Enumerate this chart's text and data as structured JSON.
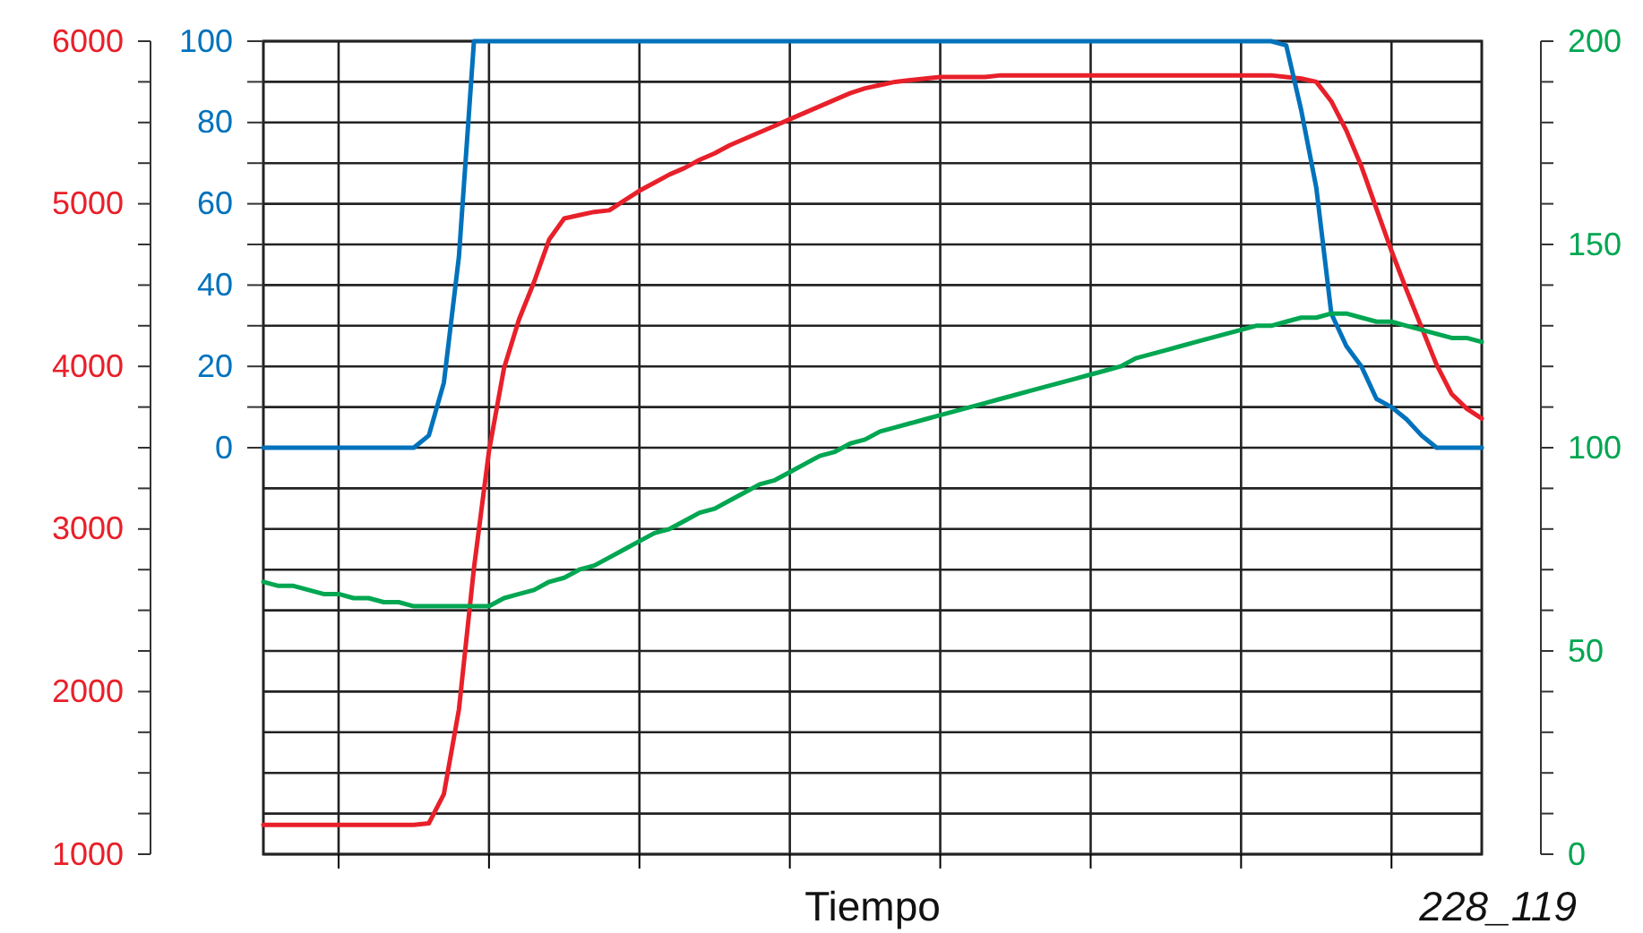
{
  "chart_data": {
    "type": "line",
    "xlabel": "Tiempo",
    "annotations": [
      "228_119"
    ],
    "categories": [
      null,
      null,
      null,
      null,
      null,
      null,
      null,
      null,
      null,
      null,
      null,
      null,
      null,
      null,
      null,
      null,
      null,
      null,
      null,
      null,
      null,
      null,
      null,
      null,
      null,
      null,
      null,
      null,
      null,
      null,
      null,
      null,
      null,
      null,
      null,
      null,
      null,
      null,
      null,
      null,
      null,
      null,
      null,
      null,
      null,
      null,
      null,
      null,
      null,
      null,
      null,
      null,
      null,
      null,
      null,
      null,
      null,
      null,
      null,
      null,
      null,
      null,
      null,
      null,
      null,
      null,
      null,
      null,
      null,
      null,
      null,
      null,
      null,
      null,
      null,
      null,
      null,
      null,
      null,
      null,
      null,
      null
    ],
    "ylim": [
      1000,
      6000
    ],
    "yticks": [
      1000,
      {
        "value": 1250,
        "label": null
      },
      {
        "value": 1500,
        "label": null
      },
      {
        "value": 1750,
        "label": null
      },
      2000,
      {
        "value": 2250,
        "label": null
      },
      {
        "value": 2500,
        "label": null
      },
      {
        "value": 2750,
        "label": null
      },
      3000,
      {
        "value": 3250,
        "label": null
      },
      {
        "value": 3500,
        "label": null
      },
      {
        "value": 3750,
        "label": null
      },
      4000,
      {
        "value": 4250,
        "label": null
      },
      {
        "value": 4500,
        "label": null
      },
      {
        "value": 4750,
        "label": null
      },
      5000,
      {
        "value": 5250,
        "label": null
      },
      {
        "value": 5500,
        "label": null
      },
      {
        "value": 5750,
        "label": null
      },
      6000
    ],
    "y2lim": [
      0,
      200
    ],
    "y2ticks": [
      0,
      {
        "value": 10,
        "label": null
      },
      {
        "value": 20,
        "label": null
      },
      {
        "value": 30,
        "label": null
      },
      {
        "value": 40,
        "label": null
      },
      50,
      {
        "value": 60,
        "label": null
      },
      {
        "value": 70,
        "label": null
      },
      {
        "value": 80,
        "label": null
      },
      {
        "value": 90,
        "label": null
      },
      100,
      {
        "value": 110,
        "label": null
      },
      {
        "value": 120,
        "label": null
      },
      {
        "value": 130,
        "label": null
      },
      {
        "value": 140,
        "label": null
      },
      150,
      {
        "value": 160,
        "label": null
      },
      {
        "value": 170,
        "label": null
      },
      {
        "value": 180,
        "label": null
      },
      {
        "value": 190,
        "label": null
      },
      200
    ],
    "y3lim": [
      -100,
      100
    ],
    "y3ticks": [
      0,
      {
        "value": 10,
        "label": null
      },
      20,
      {
        "value": 30,
        "label": null
      },
      40,
      {
        "value": 50,
        "label": null
      },
      60,
      {
        "value": 70,
        "label": null
      },
      80,
      {
        "value": 90,
        "label": null
      },
      100
    ],
    "tick_labels": "y",
    "grid": true,
    "line_style": "solid",
    "marker": "none",
    "series": [
      {
        "color": "#e8202a",
        "values": [
          1180,
          1180,
          1180,
          1180,
          1180,
          1180,
          1180,
          1180,
          1180,
          1180,
          1180,
          1190,
          1370,
          1890,
          2760,
          3480,
          3990,
          4290,
          4520,
          4780,
          4910,
          4930,
          4950,
          4960,
          5020,
          5080,
          5130,
          5180,
          5220,
          5270,
          5310,
          5360,
          5400,
          5440,
          5480,
          5520,
          5560,
          5600,
          5640,
          5680,
          5710,
          5730,
          5750,
          5760,
          5770,
          5780,
          5780,
          5780,
          5780,
          5790,
          5790,
          5790,
          5790,
          5790,
          5790,
          5790,
          5790,
          5790,
          5790,
          5790,
          5790,
          5790,
          5790,
          5790,
          5790,
          5790,
          5790,
          5790,
          5780,
          5770,
          5750,
          5630,
          5450,
          5230,
          4970,
          4710,
          4470,
          4240,
          4010,
          3830,
          3740,
          3680
        ]
      },
      {
        "color": "#0072bc",
        "axis": "y3",
        "values": [
          0,
          0,
          0,
          0,
          0,
          0,
          0,
          0,
          0,
          0,
          0,
          3,
          16,
          47,
          100,
          100,
          100,
          100,
          100,
          100,
          100,
          100,
          100,
          100,
          100,
          100,
          100,
          100,
          100,
          100,
          100,
          100,
          100,
          100,
          100,
          100,
          100,
          100,
          100,
          100,
          100,
          100,
          100,
          100,
          100,
          100,
          100,
          100,
          100,
          100,
          100,
          100,
          100,
          100,
          100,
          100,
          100,
          100,
          100,
          100,
          100,
          100,
          100,
          100,
          100,
          100,
          100,
          100,
          99,
          83,
          64,
          33,
          25,
          20,
          12,
          10,
          7,
          3,
          0,
          0,
          0,
          0
        ]
      },
      {
        "color": "#00a651",
        "axis": "y2",
        "values": [
          67,
          66,
          66,
          65,
          64,
          64,
          63,
          63,
          62,
          62,
          61,
          61,
          61,
          61,
          61,
          61,
          63,
          64,
          65,
          67,
          68,
          70,
          71,
          73,
          75,
          77,
          79,
          80,
          82,
          84,
          85,
          87,
          89,
          91,
          92,
          94,
          96,
          98,
          99,
          101,
          102,
          104,
          105,
          106,
          107,
          108,
          109,
          110,
          111,
          112,
          113,
          114,
          115,
          116,
          117,
          118,
          119,
          120,
          122,
          123,
          124,
          125,
          126,
          127,
          128,
          129,
          130,
          130,
          131,
          132,
          132,
          133,
          133,
          132,
          131,
          131,
          130,
          129,
          128,
          127,
          127,
          126
        ]
      }
    ]
  }
}
